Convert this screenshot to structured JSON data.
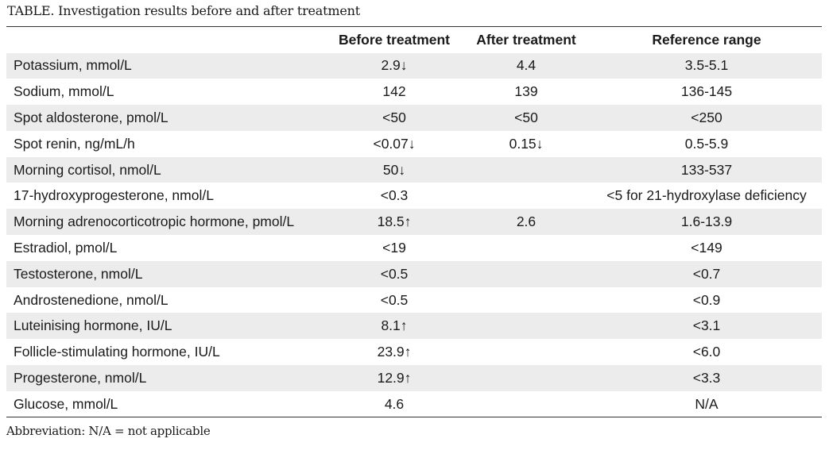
{
  "caption": "TABLE. Investigation results before and after treatment",
  "table": {
    "headers": [
      "",
      "Before treatment",
      "After treatment",
      "Reference range"
    ],
    "rows": [
      [
        "Potassium, mmol/L",
        "2.9↓",
        "4.4",
        "3.5-5.1"
      ],
      [
        "Sodium, mmol/L",
        "142",
        "139",
        "136-145"
      ],
      [
        "Spot aldosterone, pmol/L",
        "<50",
        "<50",
        "<250"
      ],
      [
        "Spot renin, ng/mL/h",
        "<0.07↓",
        "0.15↓",
        "0.5-5.9"
      ],
      [
        "Morning cortisol, nmol/L",
        "50↓",
        "",
        "133-537"
      ],
      [
        "17-hydroxyprogesterone, nmol/L",
        "<0.3",
        "",
        "<5 for 21-hydroxylase deficiency"
      ],
      [
        "Morning adrenocorticotropic hormone, pmol/L",
        "18.5↑",
        "2.6",
        "1.6-13.9"
      ],
      [
        "Estradiol, pmol/L",
        "<19",
        "",
        "<149"
      ],
      [
        "Testosterone, nmol/L",
        "<0.5",
        "",
        "<0.7"
      ],
      [
        "Androstenedione, nmol/L",
        "<0.5",
        "",
        "<0.9"
      ],
      [
        "Luteinising hormone, IU/L",
        "8.1↑",
        "",
        "<3.1"
      ],
      [
        "Follicle-stimulating hormone, IU/L",
        "23.9↑",
        "",
        "<6.0"
      ],
      [
        "Progesterone, nmol/L",
        "12.9↑",
        "",
        "<3.3"
      ],
      [
        "Glucose, mmol/L",
        "4.6",
        "",
        "N/A"
      ]
    ]
  },
  "footnote": "Abbreviation: N/A = not applicable"
}
